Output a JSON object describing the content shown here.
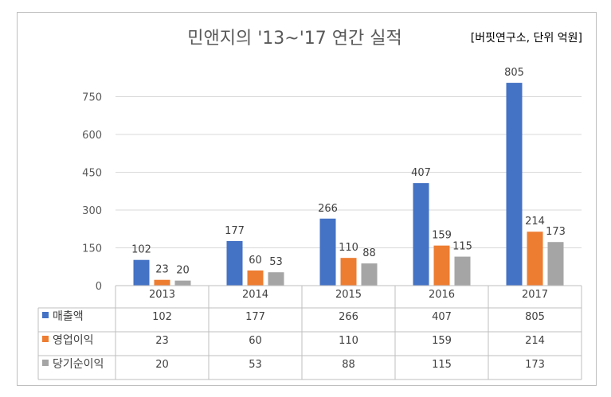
{
  "chart_data": {
    "type": "bar",
    "title": "민앤지의 '13~'17 연간 실적",
    "subtitle": "[버핏연구소, 단위 억원]",
    "categories": [
      "2013",
      "2014",
      "2015",
      "2016",
      "2017"
    ],
    "yticks": [
      "0",
      "150",
      "300",
      "450",
      "600",
      "750"
    ],
    "ylim": [
      0,
      800
    ],
    "grid": true,
    "legend_position": "data-table",
    "series": [
      {
        "name": "매출액",
        "color": "#4472c4",
        "values": [
          102,
          177,
          266,
          407,
          805
        ]
      },
      {
        "name": "영업이익",
        "color": "#ed7d31",
        "values": [
          23,
          60,
          110,
          159,
          214
        ]
      },
      {
        "name": "당기순이익",
        "color": "#a5a5a5",
        "values": [
          20,
          53,
          88,
          115,
          173
        ]
      }
    ]
  }
}
